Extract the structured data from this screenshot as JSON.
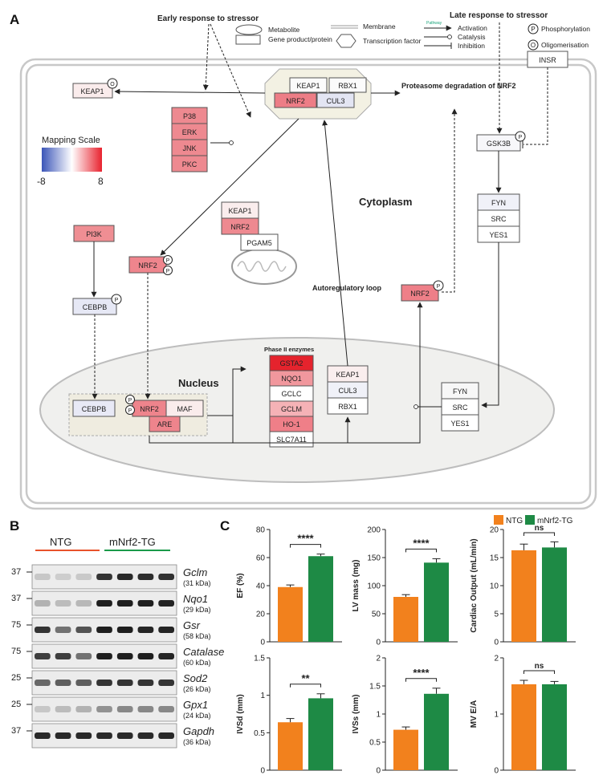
{
  "panels": {
    "a": "A",
    "b": "B",
    "c": "C"
  },
  "legend": {
    "early": "Early response to stressor",
    "late": "Late response to stressor",
    "metabolite": "Metabolite",
    "gene_product": "Gene product/protein",
    "membrane": "Membrane",
    "transcription_factor": "Transcription factor",
    "pathway_tag": "Pathway",
    "activation": "Activation",
    "catalysis": "Catalysis",
    "inhibition": "Inhibition",
    "phosphorylation": "Phosphorylation",
    "oligomerisation": "Oligomerisation",
    "p_symbol": "P",
    "o_symbol": "O"
  },
  "mapping_scale": {
    "title": "Mapping Scale",
    "min": "-8",
    "max": "8",
    "colors": [
      "#3b55b8",
      "#ffffff",
      "#e8222e"
    ]
  },
  "regions": {
    "cytoplasm": "Cytoplasm",
    "nucleus": "Nucleus",
    "proteasome": "Proteasome degradation of NRF2",
    "autoregulatory": "Autoregulatory loop",
    "phase2": "Phase II enzymes"
  },
  "nodes": {
    "keap1_left": "KEAP1",
    "complex": [
      "KEAP1",
      "RBX1",
      "NRF2",
      "CUL3"
    ],
    "kinases": [
      "P38",
      "ERK",
      "JNK",
      "PKC"
    ],
    "insr": "INSR",
    "gsk3b": "GSK3B",
    "fyn_top": [
      "FYN",
      "SRC",
      "YES1"
    ],
    "mito": [
      "KEAP1",
      "NRF2",
      "PGAM5"
    ],
    "pi3k": "PI3K",
    "nrf2_p_mid": "NRF2",
    "cebpb_cyto": "CEBPB",
    "nrf2_right": "NRF2",
    "phase2_enzymes": [
      "GSTA2",
      "NQO1",
      "GCLC",
      "GCLM",
      "HO-1",
      "SLC7A11"
    ],
    "keap_nuc": [
      "KEAP1",
      "CUL3",
      "RBX1"
    ],
    "fyn_nuc": [
      "FYN",
      "SRC",
      "YES1"
    ],
    "nuc_complex": {
      "cebpb": "CEBPB",
      "nrf2": "NRF2",
      "maf": "MAF",
      "are": "ARE"
    }
  },
  "blot": {
    "groups": [
      "NTG",
      "mNrf2-TG"
    ],
    "group_colors": [
      "#e8522a",
      "#1a9a4a"
    ],
    "rows": [
      {
        "marker": "37",
        "gene": "Gclm",
        "kda": "(31 kDa)",
        "levels": [
          0.15,
          0.12,
          0.14,
          0.85,
          0.9,
          0.88,
          0.86
        ]
      },
      {
        "marker": "37",
        "gene": "Nqo1",
        "kda": "(29 kDa)",
        "levels": [
          0.25,
          0.2,
          0.22,
          0.95,
          0.95,
          0.95,
          0.93
        ]
      },
      {
        "marker": "75",
        "gene": "Gsr",
        "kda": "(58 kDa)",
        "levels": [
          0.85,
          0.55,
          0.7,
          0.95,
          0.95,
          0.92,
          0.92
        ]
      },
      {
        "marker": "75",
        "gene": "Catalase",
        "kda": "(60 kDa)",
        "levels": [
          0.8,
          0.8,
          0.55,
          0.95,
          0.95,
          0.95,
          0.92
        ]
      },
      {
        "marker": "25",
        "gene": "Sod2",
        "kda": "(26 kDa)",
        "levels": [
          0.6,
          0.65,
          0.65,
          0.85,
          0.85,
          0.85,
          0.85
        ]
      },
      {
        "marker": "25",
        "gene": "Gpx1",
        "kda": "(24 kDa)",
        "levels": [
          0.15,
          0.2,
          0.25,
          0.4,
          0.45,
          0.45,
          0.45
        ]
      },
      {
        "marker": "37",
        "gene": "Gapdh",
        "kda": "(36 kDa)",
        "levels": [
          0.9,
          0.9,
          0.9,
          0.9,
          0.9,
          0.9,
          0.9
        ]
      }
    ]
  },
  "chart_data": [
    {
      "type": "bar",
      "categories": [
        "NTG",
        "mNrf2-TG"
      ],
      "values": [
        39,
        61
      ],
      "errors": [
        1.5,
        1.5
      ],
      "ylabel": "EF (%)",
      "ylim": [
        0,
        80
      ],
      "ticks": [
        0,
        20,
        40,
        60,
        80
      ],
      "significance": "****"
    },
    {
      "type": "bar",
      "categories": [
        "NTG",
        "mNrf2-TG"
      ],
      "values": [
        80,
        141
      ],
      "errors": [
        4,
        7
      ],
      "ylabel": "LV mass (mg)",
      "ylim": [
        0,
        200
      ],
      "ticks": [
        0,
        50,
        100,
        150,
        200
      ],
      "significance": "****"
    },
    {
      "type": "bar",
      "categories": [
        "NTG",
        "mNrf2-TG"
      ],
      "values": [
        16.3,
        16.8
      ],
      "errors": [
        1.1,
        1.0
      ],
      "ylabel": "Cardiac Output (mL/min)",
      "ylim": [
        0,
        20
      ],
      "ticks": [
        0,
        5,
        10,
        15,
        20
      ],
      "significance": "ns"
    },
    {
      "type": "bar",
      "categories": [
        "NTG",
        "mNrf2-TG"
      ],
      "values": [
        0.64,
        0.96
      ],
      "errors": [
        0.05,
        0.06
      ],
      "ylabel": "IVSd (mm)",
      "ylim": [
        0,
        1.5
      ],
      "ticks": [
        0.0,
        0.5,
        1.0,
        1.5
      ],
      "significance": "**"
    },
    {
      "type": "bar",
      "categories": [
        "NTG",
        "mNrf2-TG"
      ],
      "values": [
        0.72,
        1.36
      ],
      "errors": [
        0.05,
        0.1
      ],
      "ylabel": "IVSs (mm)",
      "ylim": [
        0,
        2.0
      ],
      "ticks": [
        0.0,
        0.5,
        1.0,
        1.5,
        2.0
      ],
      "significance": "****"
    },
    {
      "type": "bar",
      "categories": [
        "NTG",
        "mNrf2-TG"
      ],
      "values": [
        1.53,
        1.53
      ],
      "errors": [
        0.07,
        0.05
      ],
      "ylabel": "MV E/A",
      "ylim": [
        0,
        2
      ],
      "ticks": [
        0,
        1,
        2
      ],
      "significance": "ns"
    }
  ],
  "chart_legend": [
    {
      "name": "NTG",
      "color": "#f2811d"
    },
    {
      "name": "mNrf2-TG",
      "color": "#1e8a45"
    }
  ]
}
